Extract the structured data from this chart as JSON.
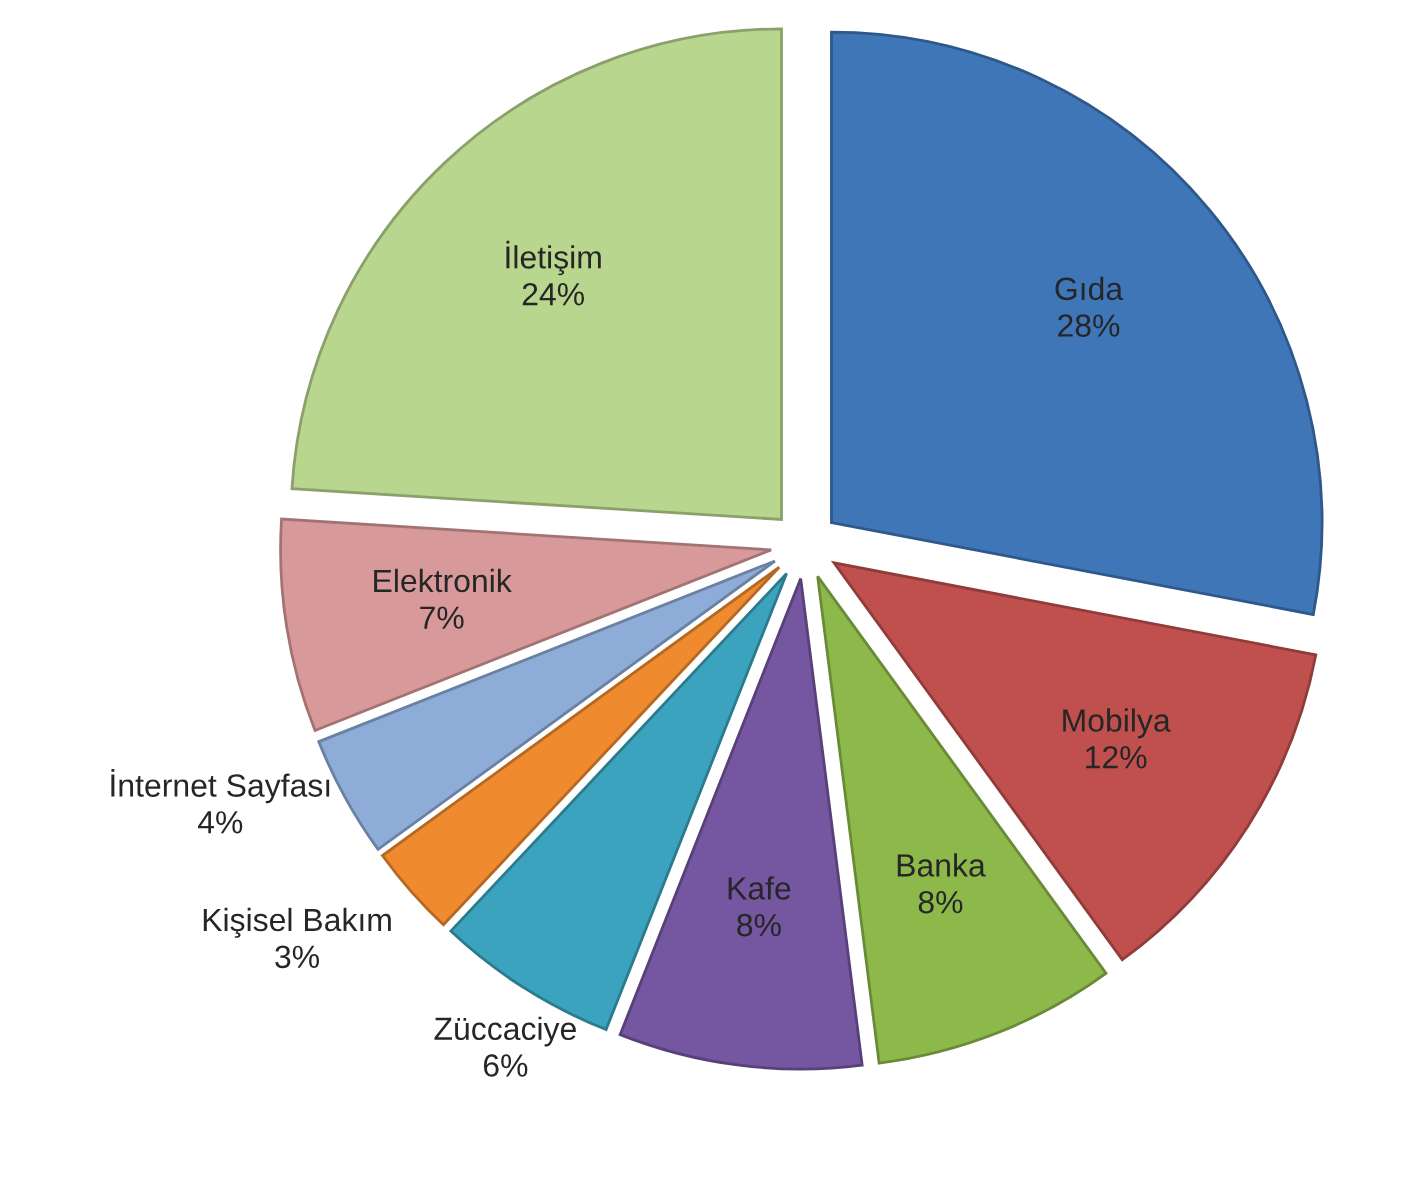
{
  "chart_data": {
    "type": "pie",
    "categories": [
      "Gıda",
      "Mobilya",
      "Banka",
      "Kafe",
      "Züccaciye",
      "Kişisel Bakım",
      "İnternet Sayfası",
      "Elektronik",
      "İletişim"
    ],
    "values": [
      28,
      12,
      8,
      8,
      6,
      3,
      4,
      7,
      24
    ],
    "value_labels": [
      "28%",
      "12%",
      "8%",
      "8%",
      "6%",
      "3%",
      "4%",
      "7%",
      "24%"
    ],
    "colors": [
      "#3f76b8",
      "#c0504d",
      "#8db84a",
      "#7556a0",
      "#3ba3bd",
      "#f08a2e",
      "#8eacd8",
      "#d8999a",
      "#b9d68e"
    ],
    "legend": false
  }
}
